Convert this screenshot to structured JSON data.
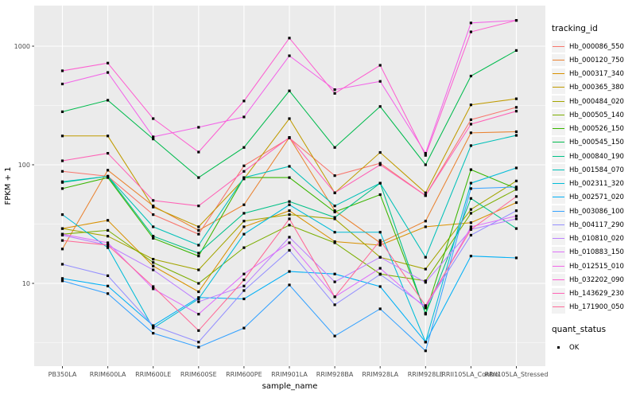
{
  "figure": {
    "background": "#FFFFFF",
    "panel_bg": "#EBEBEB",
    "grid_color": "#FFFFFF",
    "tick_color": "#333333",
    "axis_text_color": "#4D4D4D",
    "axis_title_color": "#000000"
  },
  "chart_data": {
    "type": "line",
    "title": "",
    "xlabel": "sample_name",
    "ylabel": "FPKM + 1",
    "y_scale": "log10",
    "y_ticks": [
      10,
      100,
      1000
    ],
    "y_tick_labels": [
      "10",
      "100",
      "1000"
    ],
    "y_minor_breaks": [
      3.162,
      31.62,
      316.2
    ],
    "ylim": [
      2,
      2200
    ],
    "grid": true,
    "legend_position": "right",
    "categories": [
      "PB350LA",
      "RRIM600LA",
      "RRIM600LE",
      "RRIM600SE",
      "RRIM600PE",
      "RRIM901LA",
      "RRIM928BA",
      "RRIM928LA",
      "RRIM928LE",
      "RRII105LA_Control",
      "RRII105LA_Stressed"
    ],
    "series": [
      {
        "name": "Hb_000086_550",
        "color": "#F8766D",
        "values": [
          88,
          80,
          38,
          26,
          98,
          168,
          81,
          103,
          55,
          240,
          305
        ]
      },
      {
        "name": "Hb_000120_750",
        "color": "#EA8331",
        "values": [
          19.5,
          90,
          45,
          28,
          46,
          170,
          41,
          22,
          33.5,
          186,
          190
        ]
      },
      {
        "name": "Hb_000317_340",
        "color": "#D89000",
        "values": [
          29,
          34,
          14,
          8.5,
          30,
          41,
          22.5,
          21,
          30,
          32.5,
          48
        ]
      },
      {
        "name": "Hb_000365_380",
        "color": "#C09B00",
        "values": [
          175,
          175,
          44,
          30,
          76,
          245,
          58,
          127,
          58,
          320,
          360
        ]
      },
      {
        "name": "Hb_000484_020",
        "color": "#A3A500",
        "values": [
          29,
          25,
          16,
          13,
          33.5,
          38,
          35,
          16.6,
          13.2,
          42,
          73
        ]
      },
      {
        "name": "Hb_000505_140",
        "color": "#7CAE00",
        "values": [
          26,
          28,
          15,
          10,
          20,
          31,
          22,
          12,
          10.5,
          39,
          62
        ]
      },
      {
        "name": "Hb_000526_150",
        "color": "#39B600",
        "values": [
          63,
          78,
          24,
          17,
          78,
          78,
          40,
          56,
          5.6,
          91,
          63
        ]
      },
      {
        "name": "Hb_000545_150",
        "color": "#00BB4E",
        "values": [
          280,
          350,
          165,
          78,
          140,
          420,
          140,
          310,
          100,
          560,
          920
        ]
      },
      {
        "name": "Hb_000840_190",
        "color": "#00C087",
        "values": [
          71,
          80,
          25,
          18,
          39,
          49,
          36,
          70,
          5.5,
          52,
          29
        ]
      },
      {
        "name": "Hb_001584_070",
        "color": "#00C0B8",
        "values": [
          72,
          80,
          30,
          21,
          78,
          97,
          45,
          70,
          16.6,
          145,
          177
        ]
      },
      {
        "name": "Hb_002311_320",
        "color": "#00BCD8",
        "values": [
          38,
          20,
          4.2,
          7.4,
          26,
          46,
          27,
          27,
          3.2,
          70,
          94
        ]
      },
      {
        "name": "Hb_002571_020",
        "color": "#00B0F6",
        "values": [
          11,
          9.5,
          4.4,
          7.6,
          7.4,
          12.6,
          12,
          9.4,
          3.2,
          17,
          16.4
        ]
      },
      {
        "name": "Hb_003086_100",
        "color": "#35A2FF",
        "values": [
          10.5,
          8.2,
          3.8,
          2.9,
          4.2,
          9.7,
          3.6,
          6.1,
          2.7,
          63,
          65
        ]
      },
      {
        "name": "Hb_004117_290",
        "color": "#9590FF",
        "values": [
          14.5,
          11.6,
          4.4,
          3.2,
          8.7,
          19,
          6.6,
          11.9,
          6.4,
          25.5,
          41
        ]
      },
      {
        "name": "Hb_010810_020",
        "color": "#BC80FF",
        "values": [
          25.5,
          21,
          13,
          7,
          9.5,
          24.5,
          10.3,
          16.6,
          10.2,
          28.5,
          35
        ]
      },
      {
        "name": "Hb_010883_150",
        "color": "#DE71FA",
        "values": [
          26,
          22,
          9,
          5.5,
          12,
          22,
          7.7,
          13.4,
          6.2,
          30,
          37
        ]
      },
      {
        "name": "Hb_012515_010",
        "color": "#F265E8",
        "values": [
          480,
          600,
          172,
          207,
          253,
          830,
          430,
          505,
          125,
          1570,
          1650
        ]
      },
      {
        "name": "Hb_032202_090",
        "color": "#FD61D1",
        "values": [
          620,
          720,
          245,
          128,
          345,
          1170,
          400,
          690,
          120,
          1320,
          1650
        ]
      },
      {
        "name": "Hb_143629_230",
        "color": "#FF62B6",
        "values": [
          108,
          125,
          50,
          45,
          88,
          170,
          58,
          100,
          55,
          220,
          283
        ]
      },
      {
        "name": "Hb_171900_050",
        "color": "#FF6A98",
        "values": [
          23,
          21,
          9.4,
          4.0,
          10.7,
          35,
          7.7,
          23,
          6.5,
          28.5,
          54
        ]
      }
    ],
    "point": {
      "shape": "square",
      "color": "#000000",
      "size": 3.2
    },
    "legend": {
      "color_title": "tracking_id",
      "shape_title": "quant_status",
      "shape_items": [
        {
          "label": "OK",
          "color": "#000000"
        }
      ],
      "key_bg": "#F2F2F2"
    }
  }
}
